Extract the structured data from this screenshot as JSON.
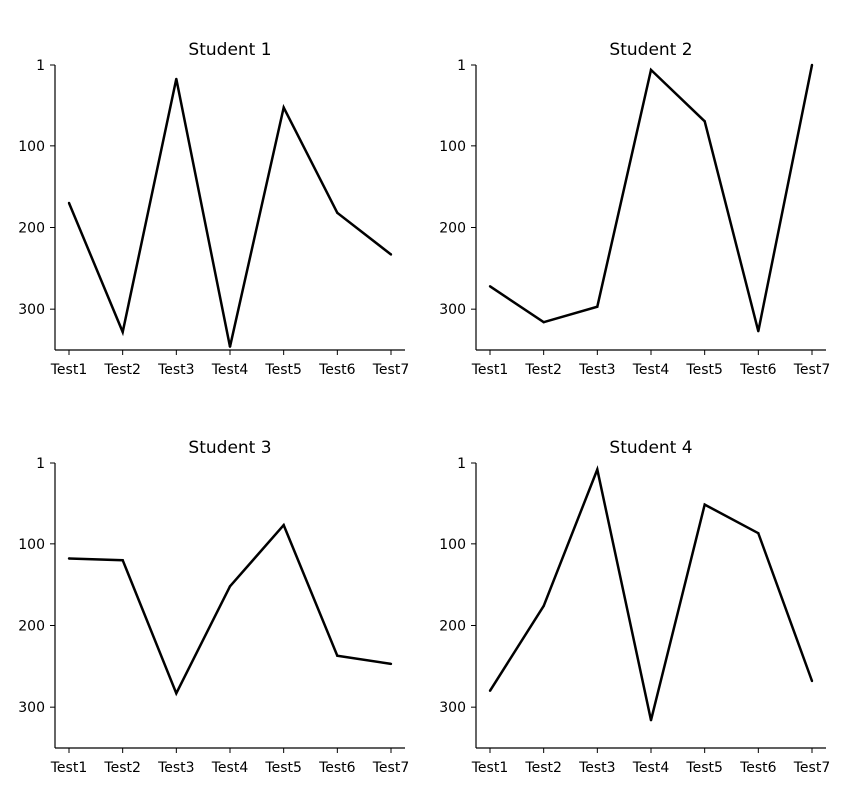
{
  "chart_data": [
    {
      "type": "line",
      "title": "Student 1",
      "categories": [
        "Test1",
        "Test2",
        "Test3",
        "Test4",
        "Test5",
        "Test6",
        "Test7"
      ],
      "values": [
        170,
        328,
        18,
        346,
        53,
        182,
        233
      ],
      "ylim": [
        350,
        1
      ],
      "y_inverted": true,
      "yticks": [
        1,
        100,
        200,
        300
      ],
      "grid": false,
      "color": "#000000"
    },
    {
      "type": "line",
      "title": "Student 2",
      "categories": [
        "Test1",
        "Test2",
        "Test3",
        "Test4",
        "Test5",
        "Test6",
        "Test7"
      ],
      "values": [
        272,
        316,
        297,
        7,
        70,
        327,
        1
      ],
      "ylim": [
        350,
        1
      ],
      "y_inverted": true,
      "yticks": [
        1,
        100,
        200,
        300
      ],
      "grid": false,
      "color": "#000000"
    },
    {
      "type": "line",
      "title": "Student 3",
      "categories": [
        "Test1",
        "Test2",
        "Test3",
        "Test4",
        "Test5",
        "Test6",
        "Test7"
      ],
      "values": [
        118,
        120,
        283,
        152,
        77,
        237,
        247
      ],
      "ylim": [
        350,
        1
      ],
      "y_inverted": true,
      "yticks": [
        1,
        100,
        200,
        300
      ],
      "grid": false,
      "color": "#000000"
    },
    {
      "type": "line",
      "title": "Student 4",
      "categories": [
        "Test1",
        "Test2",
        "Test3",
        "Test4",
        "Test5",
        "Test6",
        "Test7"
      ],
      "values": [
        280,
        176,
        9,
        316,
        52,
        87,
        268
      ],
      "ylim": [
        350,
        1
      ],
      "y_inverted": true,
      "yticks": [
        1,
        100,
        200,
        300
      ],
      "grid": false,
      "color": "#000000"
    }
  ]
}
